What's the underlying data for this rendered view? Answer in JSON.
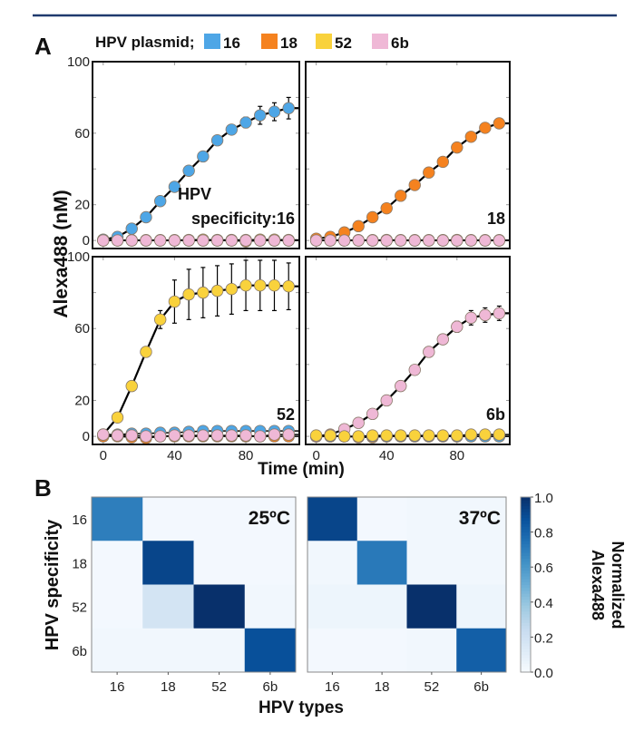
{
  "panel_a_label": "A",
  "panel_b_label": "B",
  "legend": {
    "title": "HPV plasmid;",
    "items": [
      {
        "label": "16",
        "color": "#4ea6e6"
      },
      {
        "label": "18",
        "color": "#f5821f"
      },
      {
        "label": "52",
        "color": "#f9d23c"
      },
      {
        "label": "6b",
        "color": "#efb8d6"
      }
    ]
  },
  "chart_data": [
    {
      "type": "line",
      "ylabel": "Alexa488 (nM)",
      "xlabel": "Time (min)",
      "x": [
        0,
        8,
        16,
        24,
        32,
        40,
        48,
        56,
        64,
        72,
        80,
        88,
        96,
        104
      ],
      "xlim": [
        -6,
        110
      ],
      "ylim": [
        -4.5,
        100
      ],
      "yticks": [
        0,
        20,
        40,
        60,
        80,
        100
      ],
      "ytick_labels": [
        "0",
        "20",
        "",
        "60",
        "",
        "100"
      ],
      "xticks": [
        0,
        40,
        80
      ],
      "xtick_labels": [
        "0",
        "40",
        "80"
      ],
      "panels": [
        {
          "label": [
            "HPV",
            "specificity:16"
          ],
          "series": [
            {
              "name": "18",
              "values": [
                0,
                0,
                0,
                0,
                0,
                0,
                0,
                0,
                0,
                0,
                -0.5,
                0,
                0,
                0
              ]
            },
            {
              "name": "52",
              "values": [
                0.2,
                0.2,
                0.2,
                0.2,
                0.2,
                0.2,
                0.3,
                0.5,
                0.3,
                0.3,
                0.3,
                0.5,
                0.5,
                0.3
              ]
            },
            {
              "name": "16",
              "values": [
                0.5,
                2,
                6.6,
                13,
                22,
                30,
                39,
                47,
                56,
                62,
                66,
                70,
                72,
                74
              ],
              "errors": [
                0,
                0,
                0,
                0,
                0,
                0,
                0,
                0,
                1,
                1.5,
                3,
                5,
                5,
                6
              ],
              "main": true
            },
            {
              "name": "6b",
              "values": [
                0,
                0,
                0,
                0,
                0,
                0,
                0,
                0,
                0,
                0,
                0,
                0,
                0,
                0
              ]
            }
          ]
        },
        {
          "label": [
            "18"
          ],
          "series": [
            {
              "name": "16",
              "values": [
                0,
                0,
                0,
                0,
                0,
                0,
                0,
                0,
                0,
                0,
                0,
                0,
                0,
                0
              ]
            },
            {
              "name": "52",
              "values": [
                0.2,
                0.2,
                0.2,
                0.2,
                0.2,
                0.3,
                0.2,
                0.2,
                0.2,
                0.2,
                0.3,
                0.2,
                0.2,
                0.2
              ]
            },
            {
              "name": "18",
              "values": [
                1,
                2,
                4.5,
                8,
                13,
                18,
                25,
                31,
                38,
                44,
                52,
                58,
                63,
                65.5
              ],
              "errors": [
                0,
                0,
                0,
                0,
                0,
                0,
                0,
                0,
                0,
                0,
                1,
                1,
                1,
                1
              ],
              "main": true
            },
            {
              "name": "6b",
              "values": [
                0,
                0,
                0,
                0,
                0,
                0,
                0,
                0,
                0,
                0,
                0,
                0,
                0,
                0
              ]
            }
          ]
        },
        {
          "label": [
            "52"
          ],
          "series": [
            {
              "name": "18",
              "values": [
                0,
                0,
                -0.5,
                -1,
                0,
                0,
                0,
                0,
                0,
                0,
                0,
                0,
                0,
                0
              ]
            },
            {
              "name": "16",
              "values": [
                1,
                1,
                1.5,
                1.5,
                2,
                2,
                2.5,
                3,
                3,
                3,
                3,
                3,
                3,
                3
              ]
            },
            {
              "name": "52",
              "values": [
                1,
                10.5,
                28,
                47,
                65,
                75,
                79,
                80,
                81,
                82,
                84,
                84,
                84,
                83.5
              ],
              "errors": [
                0,
                0,
                0,
                1.5,
                5,
                12,
                14,
                14,
                14,
                14,
                14,
                14,
                14,
                13
              ],
              "main": true
            },
            {
              "name": "6b",
              "values": [
                1,
                0.5,
                0.5,
                0,
                0,
                0.5,
                0.5,
                0.5,
                0.5,
                0.5,
                0.5,
                0,
                1,
                1
              ]
            }
          ]
        },
        {
          "label": [
            "6b"
          ],
          "series": [
            {
              "name": "18",
              "values": [
                0,
                0,
                0,
                -0.5,
                -0.5,
                0,
                0,
                0,
                0,
                0,
                0,
                0,
                0,
                0
              ]
            },
            {
              "name": "16",
              "values": [
                0,
                0,
                0,
                0,
                0,
                0,
                0,
                0,
                0,
                0,
                0,
                0,
                0,
                0
              ]
            },
            {
              "name": "6b",
              "values": [
                0,
                1,
                4,
                7.5,
                12.5,
                20,
                28,
                37,
                47,
                54,
                61,
                66,
                67.5,
                68.5
              ],
              "errors": [
                0,
                0,
                0,
                0,
                0,
                0,
                0,
                0,
                1,
                2,
                3,
                4,
                4,
                4
              ],
              "main": true
            },
            {
              "name": "52",
              "values": [
                0.5,
                0.5,
                0,
                0,
                0.5,
                0.5,
                0.5,
                0.5,
                0.5,
                0.5,
                0.5,
                1,
                1,
                1
              ]
            }
          ]
        }
      ]
    },
    {
      "type": "heatmap",
      "ylabel": "HPV specificity",
      "xlabel": "HPV types",
      "categories_x": [
        "16",
        "18",
        "52",
        "6b"
      ],
      "categories_y": [
        "16",
        "18",
        "52",
        "6b"
      ],
      "colorbar": {
        "label": [
          "Normalized",
          "Alexa488"
        ],
        "range": [
          0,
          1
        ],
        "ticks": [
          "0.0",
          "0.2",
          "0.4",
          "0.6",
          "0.8",
          "1.0"
        ],
        "colormap": "Blues"
      },
      "maps": [
        {
          "title": "25ºC",
          "values": [
            [
              0.7,
              0.02,
              0.02,
              0.02
            ],
            [
              0.02,
              0.92,
              0.02,
              0.02
            ],
            [
              0.02,
              0.18,
              1.0,
              0.03
            ],
            [
              0.03,
              0.03,
              0.03,
              0.88
            ]
          ]
        },
        {
          "title": "37ºC",
          "values": [
            [
              0.92,
              0.02,
              0.03,
              0.03
            ],
            [
              0.03,
              0.72,
              0.03,
              0.03
            ],
            [
              0.05,
              0.05,
              1.0,
              0.05
            ],
            [
              0.02,
              0.02,
              0.03,
              0.82
            ]
          ]
        }
      ]
    }
  ]
}
